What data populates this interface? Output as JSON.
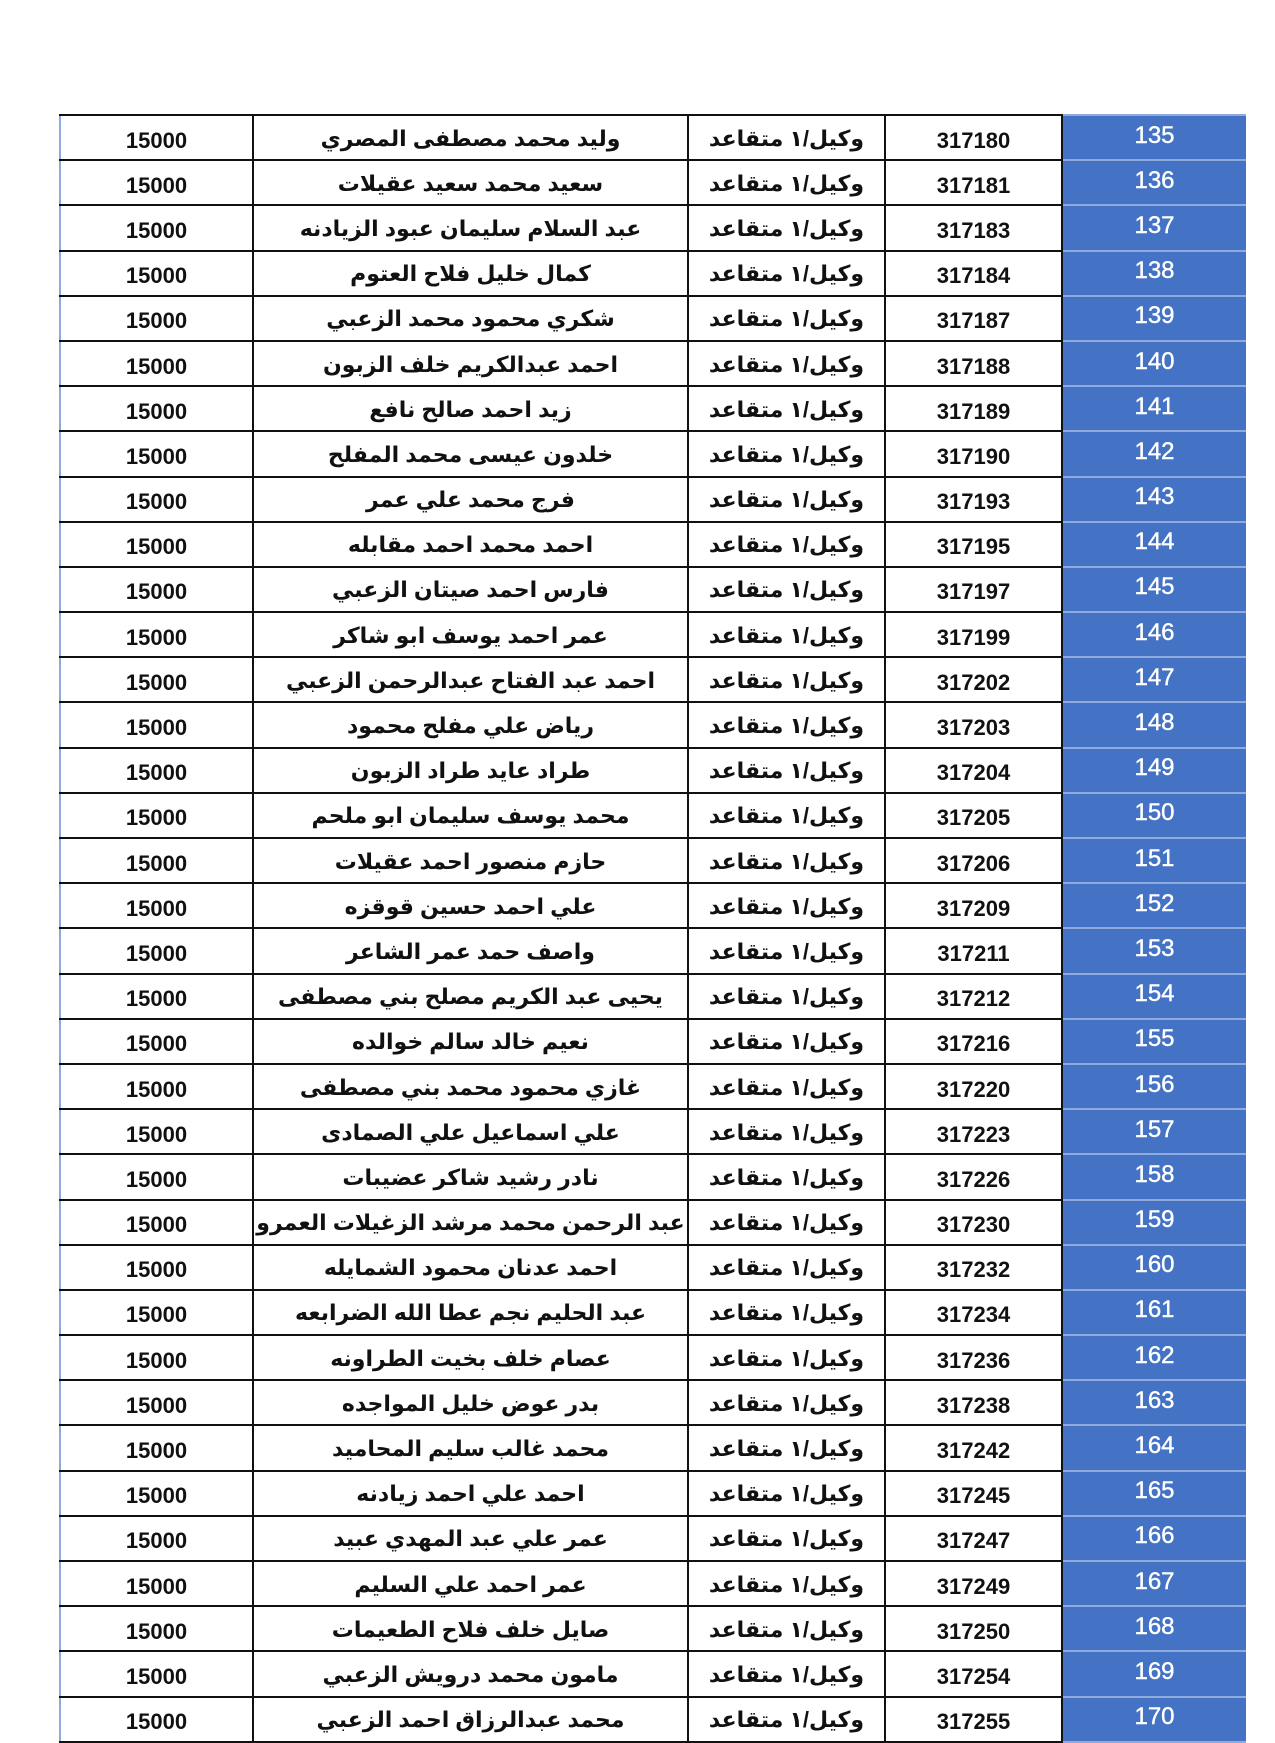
{
  "colors": {
    "number_column_bg": "#4472C4",
    "number_text": "#FFFFFF"
  },
  "rows": [
    {
      "no": "135",
      "id": "317180",
      "rank": "وكيل/١ متقاعد",
      "name": "وليد محمد مصطفى المصري",
      "amount": "15000"
    },
    {
      "no": "136",
      "id": "317181",
      "rank": "وكيل/١ متقاعد",
      "name": "سعيد محمد سعيد عقيلات",
      "amount": "15000"
    },
    {
      "no": "137",
      "id": "317183",
      "rank": "وكيل/١ متقاعد",
      "name": "عبد السلام سليمان عبود الزيادنه",
      "amount": "15000"
    },
    {
      "no": "138",
      "id": "317184",
      "rank": "وكيل/١ متقاعد",
      "name": "كمال خليل فلاح العتوم",
      "amount": "15000"
    },
    {
      "no": "139",
      "id": "317187",
      "rank": "وكيل/١ متقاعد",
      "name": "شكري محمود محمد الزعبي",
      "amount": "15000"
    },
    {
      "no": "140",
      "id": "317188",
      "rank": "وكيل/١ متقاعد",
      "name": "احمد عبدالكريم خلف الزبون",
      "amount": "15000"
    },
    {
      "no": "141",
      "id": "317189",
      "rank": "وكيل/١ متقاعد",
      "name": "زيد احمد صالح نافع",
      "amount": "15000"
    },
    {
      "no": "142",
      "id": "317190",
      "rank": "وكيل/١ متقاعد",
      "name": "خلدون عيسى محمد المفلح",
      "amount": "15000"
    },
    {
      "no": "143",
      "id": "317193",
      "rank": "وكيل/١ متقاعد",
      "name": "فرج محمد علي عمر",
      "amount": "15000"
    },
    {
      "no": "144",
      "id": "317195",
      "rank": "وكيل/١ متقاعد",
      "name": "احمد محمد احمد مقابله",
      "amount": "15000"
    },
    {
      "no": "145",
      "id": "317197",
      "rank": "وكيل/١ متقاعد",
      "name": "فارس احمد صيتان الزعبي",
      "amount": "15000"
    },
    {
      "no": "146",
      "id": "317199",
      "rank": "وكيل/١ متقاعد",
      "name": "عمر احمد يوسف ابو شاكر",
      "amount": "15000"
    },
    {
      "no": "147",
      "id": "317202",
      "rank": "وكيل/١ متقاعد",
      "name": "احمد عبد الفتاح عبدالرحمن الزعبي",
      "amount": "15000"
    },
    {
      "no": "148",
      "id": "317203",
      "rank": "وكيل/١ متقاعد",
      "name": "رياض علي مفلح محمود",
      "amount": "15000"
    },
    {
      "no": "149",
      "id": "317204",
      "rank": "وكيل/١ متقاعد",
      "name": "طراد عايد طراد الزبون",
      "amount": "15000"
    },
    {
      "no": "150",
      "id": "317205",
      "rank": "وكيل/١ متقاعد",
      "name": "محمد يوسف سليمان ابو ملحم",
      "amount": "15000"
    },
    {
      "no": "151",
      "id": "317206",
      "rank": "وكيل/١ متقاعد",
      "name": "حازم منصور احمد عقيلات",
      "amount": "15000"
    },
    {
      "no": "152",
      "id": "317209",
      "rank": "وكيل/١ متقاعد",
      "name": "علي احمد حسين قوقزه",
      "amount": "15000"
    },
    {
      "no": "153",
      "id": "317211",
      "rank": "وكيل/١ متقاعد",
      "name": "واصف حمد عمر الشاعر",
      "amount": "15000"
    },
    {
      "no": "154",
      "id": "317212",
      "rank": "وكيل/١ متقاعد",
      "name": "يحيى عبد الكريم مصلح بني مصطفى",
      "amount": "15000"
    },
    {
      "no": "155",
      "id": "317216",
      "rank": "وكيل/١ متقاعد",
      "name": "نعيم خالد سالم خوالده",
      "amount": "15000"
    },
    {
      "no": "156",
      "id": "317220",
      "rank": "وكيل/١ متقاعد",
      "name": "غازي محمود محمد بني مصطفى",
      "amount": "15000"
    },
    {
      "no": "157",
      "id": "317223",
      "rank": "وكيل/١ متقاعد",
      "name": "علي اسماعيل علي الصمادى",
      "amount": "15000"
    },
    {
      "no": "158",
      "id": "317226",
      "rank": "وكيل/١ متقاعد",
      "name": "نادر رشيد شاكر عضيبات",
      "amount": "15000"
    },
    {
      "no": "159",
      "id": "317230",
      "rank": "وكيل/١ متقاعد",
      "name": "عبد الرحمن محمد مرشد الزغيلات العمرو",
      "amount": "15000"
    },
    {
      "no": "160",
      "id": "317232",
      "rank": "وكيل/١ متقاعد",
      "name": "احمد عدنان محمود الشمايله",
      "amount": "15000"
    },
    {
      "no": "161",
      "id": "317234",
      "rank": "وكيل/١ متقاعد",
      "name": "عبد الحليم نجم عطا الله الضرابعه",
      "amount": "15000"
    },
    {
      "no": "162",
      "id": "317236",
      "rank": "وكيل/١ متقاعد",
      "name": "عصام خلف بخيت الطراونه",
      "amount": "15000"
    },
    {
      "no": "163",
      "id": "317238",
      "rank": "وكيل/١ متقاعد",
      "name": "بدر عوض خليل المواجده",
      "amount": "15000"
    },
    {
      "no": "164",
      "id": "317242",
      "rank": "وكيل/١ متقاعد",
      "name": "محمد غالب سليم المحاميد",
      "amount": "15000"
    },
    {
      "no": "165",
      "id": "317245",
      "rank": "وكيل/١ متقاعد",
      "name": "احمد علي احمد زيادنه",
      "amount": "15000"
    },
    {
      "no": "166",
      "id": "317247",
      "rank": "وكيل/١ متقاعد",
      "name": "عمر علي عبد المهدي عبيد",
      "amount": "15000"
    },
    {
      "no": "167",
      "id": "317249",
      "rank": "وكيل/١ متقاعد",
      "name": "عمر احمد علي السليم",
      "amount": "15000"
    },
    {
      "no": "168",
      "id": "317250",
      "rank": "وكيل/١ متقاعد",
      "name": "صايل خلف فلاح الطعيمات",
      "amount": "15000"
    },
    {
      "no": "169",
      "id": "317254",
      "rank": "وكيل/١ متقاعد",
      "name": "مامون محمد درويش الزعبي",
      "amount": "15000"
    },
    {
      "no": "170",
      "id": "317255",
      "rank": "وكيل/١ متقاعد",
      "name": "محمد عبدالرزاق احمد الزعبي",
      "amount": "15000"
    }
  ]
}
